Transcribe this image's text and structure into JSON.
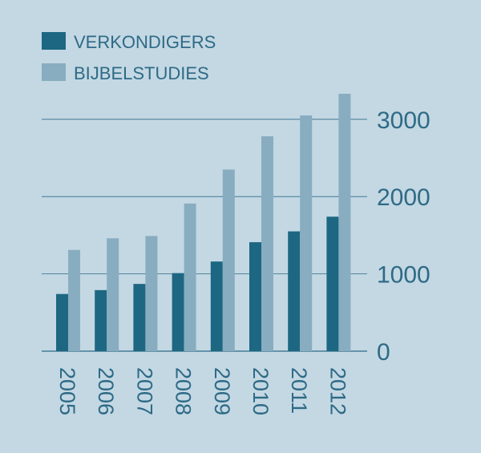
{
  "chart_data": {
    "type": "bar",
    "categories": [
      "2005",
      "2006",
      "2007",
      "2008",
      "2009",
      "2010",
      "2011",
      "2012"
    ],
    "series": [
      {
        "name": "VERKONDIGERS",
        "values": [
          740,
          790,
          870,
          1010,
          1160,
          1410,
          1550,
          1740
        ]
      },
      {
        "name": "BIJBELSTUDIES",
        "values": [
          1310,
          1460,
          1490,
          1910,
          2350,
          2780,
          3050,
          3330
        ]
      }
    ],
    "yticks": [
      0,
      1000,
      2000,
      3000
    ],
    "ylim": [
      0,
      3400
    ],
    "legend": "top-left",
    "grid": true
  },
  "colors": {
    "background": "#c3d8e3",
    "verkondigers": "#1d6782",
    "bijbelstudies": "#88adc0",
    "gridline": "#2e6a86",
    "text": "#2e6a86"
  }
}
